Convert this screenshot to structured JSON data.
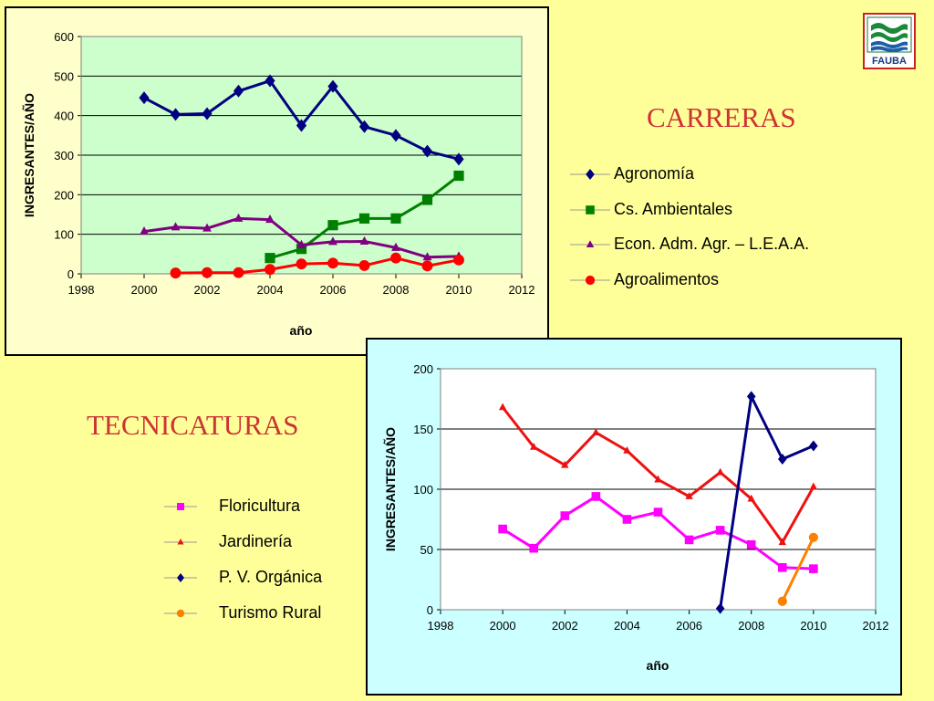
{
  "slide": {
    "carreras_title": "CARRERAS",
    "tecnicaturas_title": "TECNICATURAS",
    "logo_text": "FAUBA"
  },
  "legend_carreras": [
    {
      "label": "Agronomía",
      "color": "#000080",
      "marker": "diamond"
    },
    {
      "label": "Cs. Ambientales",
      "color": "#008000",
      "marker": "square"
    },
    {
      "label": "Econ. Adm. Agr. – L.E.A.A.",
      "color": "#800080",
      "marker": "triangle"
    },
    {
      "label": "Agroalimentos",
      "color": "#ff0000",
      "marker": "circle"
    }
  ],
  "legend_tecnicaturas": [
    {
      "label": "Floricultura",
      "color": "#ff00ff",
      "marker": "square"
    },
    {
      "label": "Jardinería",
      "color": "#ee1111",
      "marker": "triangle"
    },
    {
      "label": "P. V. Orgánica",
      "color": "#000080",
      "marker": "diamond"
    },
    {
      "label": "Turismo Rural",
      "color": "#ff8000",
      "marker": "circle"
    }
  ],
  "chart_data": [
    {
      "type": "line",
      "title": "",
      "xlabel": "año",
      "ylabel": "INGRESANTES/AÑO",
      "xlim": [
        1998,
        2012
      ],
      "ylim": [
        0,
        600
      ],
      "xticks": [
        1998,
        2000,
        2002,
        2004,
        2006,
        2008,
        2010,
        2012
      ],
      "yticks": [
        0,
        100,
        200,
        300,
        400,
        500,
        600
      ],
      "grid": "horizontal",
      "plot_background": "#ccffcc",
      "series": [
        {
          "name": "Agronomía",
          "color": "#000080",
          "marker": "diamond",
          "x": [
            2000,
            2001,
            2002,
            2003,
            2004,
            2005,
            2006,
            2007,
            2008,
            2009,
            2010
          ],
          "y": [
            445,
            403,
            405,
            462,
            488,
            375,
            474,
            372,
            350,
            310,
            290
          ]
        },
        {
          "name": "Cs. Ambientales",
          "color": "#008000",
          "marker": "square",
          "x": [
            2004,
            2005,
            2006,
            2007,
            2008,
            2009,
            2010
          ],
          "y": [
            40,
            63,
            123,
            140,
            140,
            187,
            248
          ]
        },
        {
          "name": "Econ. Adm. Agr. – L.E.A.A.",
          "color": "#800080",
          "marker": "triangle",
          "x": [
            2000,
            2001,
            2002,
            2003,
            2004,
            2005,
            2006,
            2007,
            2008,
            2009,
            2010
          ],
          "y": [
            107,
            118,
            115,
            140,
            137,
            73,
            81,
            82,
            66,
            42,
            44
          ]
        },
        {
          "name": "Agroalimentos",
          "color": "#ff0000",
          "marker": "circle",
          "x": [
            2001,
            2002,
            2003,
            2004,
            2005,
            2006,
            2007,
            2008,
            2009,
            2010
          ],
          "y": [
            2,
            3,
            3,
            11,
            25,
            27,
            21,
            40,
            20,
            35
          ]
        }
      ]
    },
    {
      "type": "line",
      "title": "",
      "xlabel": "año",
      "ylabel": "INGRESANTES/AÑO",
      "xlim": [
        1998,
        2012
      ],
      "ylim": [
        0,
        200
      ],
      "xticks": [
        1998,
        2000,
        2002,
        2004,
        2006,
        2008,
        2010,
        2012
      ],
      "yticks": [
        0,
        50,
        100,
        150,
        200
      ],
      "grid": "horizontal",
      "plot_background": "#ffffff",
      "series": [
        {
          "name": "Floricultura",
          "color": "#ff00ff",
          "marker": "square",
          "x": [
            2000,
            2001,
            2002,
            2003,
            2004,
            2005,
            2006,
            2007,
            2008,
            2009,
            2010
          ],
          "y": [
            67,
            51,
            78,
            94,
            75,
            81,
            58,
            66,
            54,
            35,
            34
          ]
        },
        {
          "name": "Jardinería",
          "color": "#ee1111",
          "marker": "triangle",
          "x": [
            2000,
            2001,
            2002,
            2003,
            2004,
            2005,
            2006,
            2007,
            2008,
            2009,
            2010
          ],
          "y": [
            168,
            135,
            120,
            147,
            132,
            108,
            94,
            114,
            92,
            56,
            102
          ]
        },
        {
          "name": "P. V. Orgánica",
          "color": "#000080",
          "marker": "diamond",
          "x": [
            2007,
            2008,
            2009,
            2010
          ],
          "y": [
            1,
            177,
            125,
            136
          ]
        },
        {
          "name": "Turismo Rural",
          "color": "#ff8000",
          "marker": "circle",
          "x": [
            2009,
            2010
          ],
          "y": [
            7,
            60
          ]
        }
      ]
    }
  ]
}
